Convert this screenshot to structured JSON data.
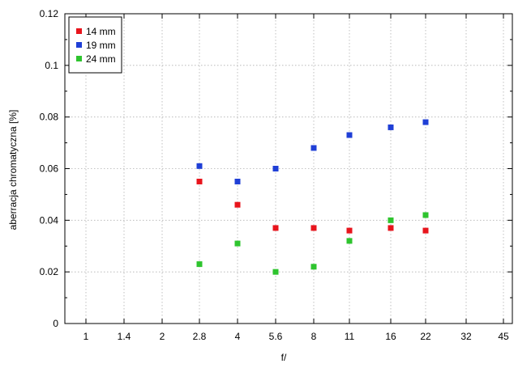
{
  "chart_data": {
    "type": "scatter",
    "xlabel": "f/",
    "ylabel": "aberracja chromatyczna [%]",
    "x_categories": [
      "1",
      "1.4",
      "2",
      "2.8",
      "4",
      "5.6",
      "8",
      "11",
      "16",
      "22",
      "32",
      "45"
    ],
    "y_ticks": [
      "0",
      "0.02",
      "0.04",
      "0.06",
      "0.08",
      "0.1",
      "0.12"
    ],
    "ylim": [
      0,
      0.12
    ],
    "x_scale": "log",
    "grid": true,
    "legend_position": "top-left",
    "series": [
      {
        "name": "14 mm",
        "color": "#e8141c",
        "points": [
          {
            "x": "2.8",
            "y": 0.055
          },
          {
            "x": "4",
            "y": 0.046
          },
          {
            "x": "5.6",
            "y": 0.037
          },
          {
            "x": "8",
            "y": 0.037
          },
          {
            "x": "11",
            "y": 0.036
          },
          {
            "x": "16",
            "y": 0.037
          },
          {
            "x": "22",
            "y": 0.036
          }
        ]
      },
      {
        "name": "19 mm",
        "color": "#1f3fd6",
        "points": [
          {
            "x": "2.8",
            "y": 0.061
          },
          {
            "x": "4",
            "y": 0.055
          },
          {
            "x": "5.6",
            "y": 0.06
          },
          {
            "x": "8",
            "y": 0.068
          },
          {
            "x": "11",
            "y": 0.073
          },
          {
            "x": "16",
            "y": 0.076
          },
          {
            "x": "22",
            "y": 0.078
          }
        ]
      },
      {
        "name": "24 mm",
        "color": "#2ec42e",
        "points": [
          {
            "x": "2.8",
            "y": 0.023
          },
          {
            "x": "4",
            "y": 0.031
          },
          {
            "x": "5.6",
            "y": 0.02
          },
          {
            "x": "8",
            "y": 0.022
          },
          {
            "x": "11",
            "y": 0.032
          },
          {
            "x": "16",
            "y": 0.04
          },
          {
            "x": "22",
            "y": 0.042
          }
        ]
      }
    ]
  }
}
